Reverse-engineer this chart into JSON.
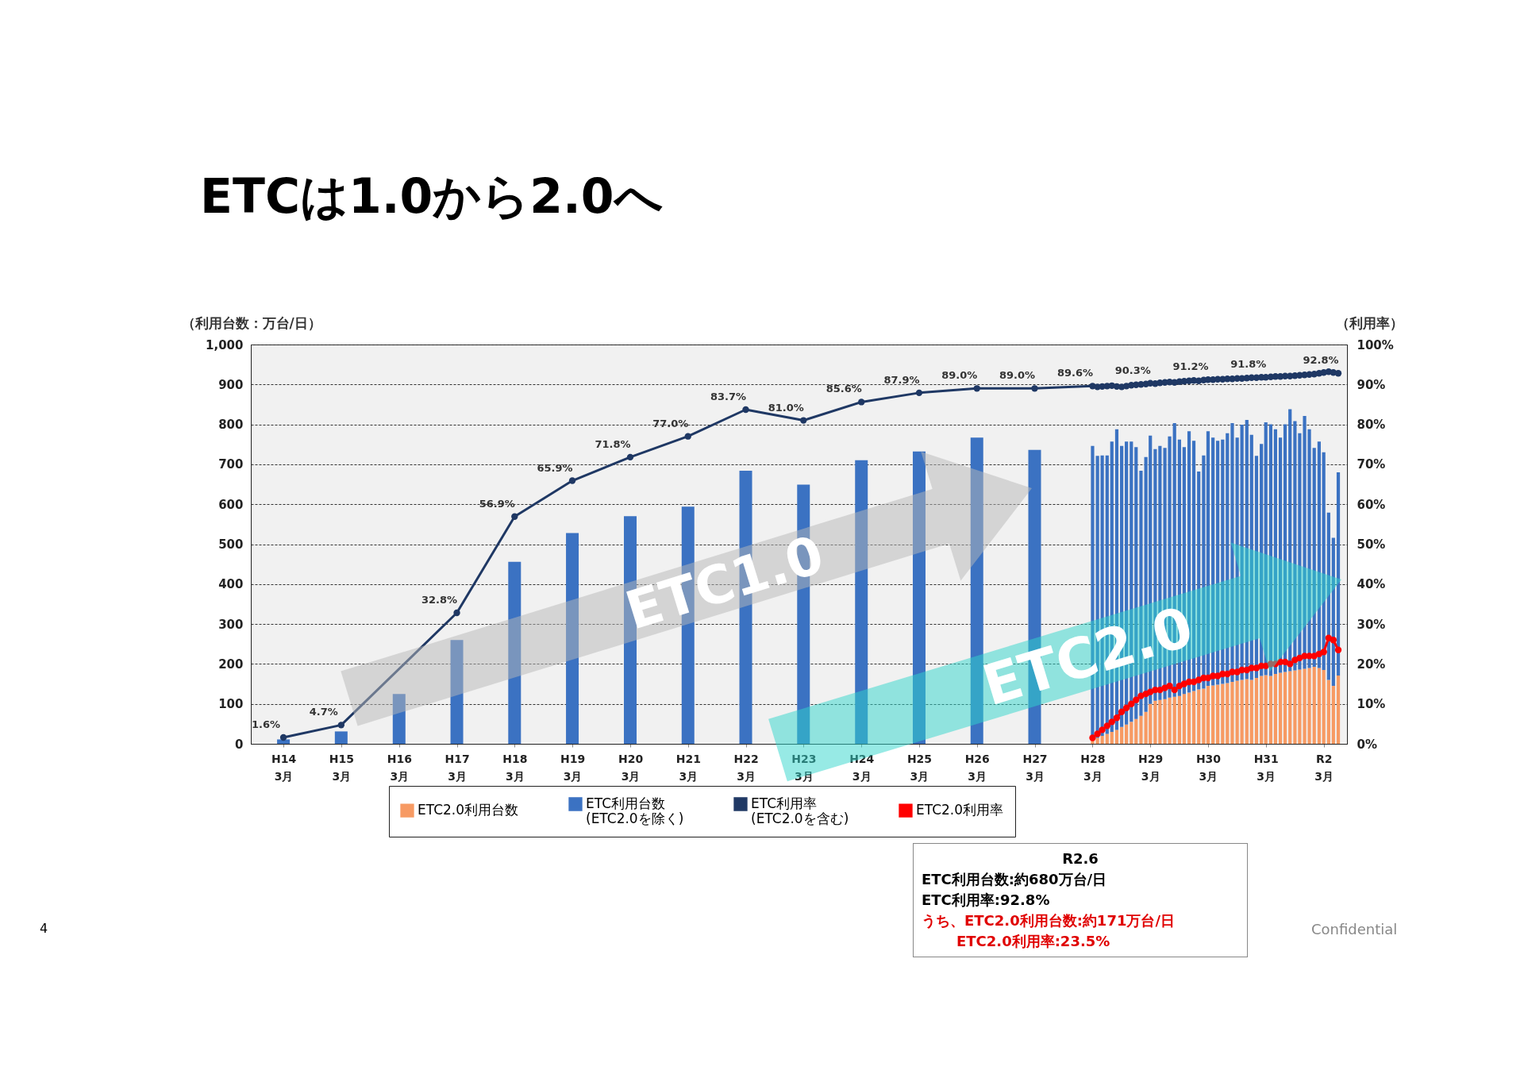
{
  "chart_data": {
    "type": "bar",
    "title": "ETCは1.0から2.0へ",
    "ylabel": "（利用台数：万台/日）",
    "y2label": "（利用率）",
    "stacked": true,
    "grid": "y",
    "legend": "bottom",
    "ylim": [
      0,
      1000
    ],
    "yticks": [
      0,
      100,
      200,
      300,
      400,
      500,
      600,
      700,
      800,
      900,
      {
        "value": 1000,
        "label": "1,000"
      }
    ],
    "y2lim": [
      0,
      100
    ],
    "y2ticks": [
      {
        "value": 0,
        "label": "0%"
      },
      {
        "value": 10,
        "label": "10%"
      },
      {
        "value": 20,
        "label": "20%"
      },
      {
        "value": 30,
        "label": "30%"
      },
      {
        "value": 40,
        "label": "40%"
      },
      {
        "value": 50,
        "label": "50%"
      },
      {
        "value": 60,
        "label": "60%"
      },
      {
        "value": 70,
        "label": "70%"
      },
      {
        "value": 80,
        "label": "80%"
      },
      {
        "value": 90,
        "label": "90%"
      },
      {
        "value": 100,
        "label": "100%"
      }
    ],
    "xlim": [
      "2001-09",
      "2020-07"
    ],
    "xticks": [
      {
        "value": "2002-03",
        "label": "H14\n3月"
      },
      {
        "value": "2003-03",
        "label": "H15\n3月"
      },
      {
        "value": "2004-03",
        "label": "H16\n3月"
      },
      {
        "value": "2005-03",
        "label": "H17\n3月"
      },
      {
        "value": "2006-03",
        "label": "H18\n3月"
      },
      {
        "value": "2007-03",
        "label": "H19\n3月"
      },
      {
        "value": "2008-03",
        "label": "H20\n3月"
      },
      {
        "value": "2009-03",
        "label": "H21\n3月"
      },
      {
        "value": "2010-03",
        "label": "H22\n3月"
      },
      {
        "value": "2011-03",
        "label": "H23\n3月"
      },
      {
        "value": "2012-03",
        "label": "H24\n3月"
      },
      {
        "value": "2013-03",
        "label": "H25\n3月"
      },
      {
        "value": "2014-03",
        "label": "H26\n3月"
      },
      {
        "value": "2015-03",
        "label": "H27\n3月"
      },
      {
        "value": "2016-03",
        "label": "H28\n3月"
      },
      {
        "value": "2017-03",
        "label": "H29\n3月"
      },
      {
        "value": "2018-03",
        "label": "H30\n3月"
      },
      {
        "value": "2019-03",
        "label": "H31\n3月"
      },
      {
        "value": "2020-03",
        "label": "R2\n3月"
      }
    ],
    "series": [
      {
        "name": "ETC2.0利用台数",
        "type": "bar",
        "color": "#f79a63",
        "x": [
          "2002-03",
          "2003-03",
          "2004-03",
          "2005-03",
          "2006-03",
          "2007-03",
          "2008-03",
          "2009-03",
          "2010-03",
          "2011-03",
          "2012-03",
          "2013-03",
          "2014-03",
          "2015-03",
          "2016-03",
          "2016-04",
          "2016-05",
          "2016-06",
          "2016-07",
          "2016-08",
          "2016-09",
          "2016-10",
          "2016-11",
          "2016-12",
          "2017-01",
          "2017-02",
          "2017-03",
          "2017-04",
          "2017-05",
          "2017-06",
          "2017-07",
          "2017-08",
          "2017-09",
          "2017-10",
          "2017-11",
          "2017-12",
          "2018-01",
          "2018-02",
          "2018-03",
          "2018-04",
          "2018-05",
          "2018-06",
          "2018-07",
          "2018-08",
          "2018-09",
          "2018-10",
          "2018-11",
          "2018-12",
          "2019-01",
          "2019-02",
          "2019-03",
          "2019-04",
          "2019-05",
          "2019-06",
          "2019-07",
          "2019-08",
          "2019-09",
          "2019-10",
          "2019-11",
          "2019-12",
          "2020-01",
          "2020-02",
          "2020-03",
          "2020-04",
          "2020-05",
          "2020-06"
        ],
        "values": [
          0,
          0,
          0,
          0,
          0,
          0,
          0,
          0,
          0,
          0,
          0,
          0,
          0,
          0,
          8,
          15,
          20,
          25,
          30,
          35,
          42,
          48,
          55,
          62,
          70,
          80,
          100,
          108,
          110,
          112,
          116,
          118,
          120,
          125,
          128,
          132,
          136,
          138,
          145,
          146,
          148,
          150,
          152,
          155,
          158,
          160,
          162,
          160,
          165,
          170,
          172,
          170,
          175,
          178,
          180,
          182,
          184,
          186,
          188,
          190,
          193,
          190,
          185,
          160,
          145,
          171
        ]
      },
      {
        "name": "ETC利用台数\n(ETC2.0を除く)",
        "type": "bar",
        "color": "#3b72c2",
        "x": [
          "2002-03",
          "2003-03",
          "2004-03",
          "2005-03",
          "2006-03",
          "2007-03",
          "2008-03",
          "2009-03",
          "2010-03",
          "2011-03",
          "2012-03",
          "2013-03",
          "2014-03",
          "2015-03",
          "2016-03",
          "2016-04",
          "2016-05",
          "2016-06",
          "2016-07",
          "2016-08",
          "2016-09",
          "2016-10",
          "2016-11",
          "2016-12",
          "2017-01",
          "2017-02",
          "2017-03",
          "2017-04",
          "2017-05",
          "2017-06",
          "2017-07",
          "2017-08",
          "2017-09",
          "2017-10",
          "2017-11",
          "2017-12",
          "2018-01",
          "2018-02",
          "2018-03",
          "2018-04",
          "2018-05",
          "2018-06",
          "2018-07",
          "2018-08",
          "2018-09",
          "2018-10",
          "2018-11",
          "2018-12",
          "2019-01",
          "2019-02",
          "2019-03",
          "2019-04",
          "2019-05",
          "2019-06",
          "2019-07",
          "2019-08",
          "2019-09",
          "2019-10",
          "2019-11",
          "2019-12",
          "2020-01",
          "2020-02",
          "2020-03",
          "2020-04",
          "2020-05",
          "2020-06"
        ],
        "values": [
          11,
          31,
          125,
          260,
          456,
          528,
          570,
          594,
          684,
          649,
          710,
          732,
          767,
          736,
          738,
          706,
          702,
          697,
          727,
          753,
          704,
          709,
          702,
          681,
          614,
          638,
          672,
          630,
          636,
          629,
          654,
          685,
          642,
          618,
          655,
          627,
          546,
          584,
          638,
          621,
          611,
          612,
          626,
          648,
          609,
          639,
          649,
          614,
          556,
          581,
          633,
          630,
          613,
          589,
          620,
          656,
          624,
          592,
          633,
          598,
          548,
          567,
          545,
          419,
          371,
          509
        ]
      },
      {
        "name": "ETC利用率\n(ETC2.0を含む)",
        "type": "line",
        "axis": "y2",
        "marker": "circle",
        "color": "#1f3864",
        "x": [
          "2002-03",
          "2003-03",
          "2004-03",
          "2005-03",
          "2006-03",
          "2007-03",
          "2008-03",
          "2009-03",
          "2010-03",
          "2011-03",
          "2012-03",
          "2013-03",
          "2014-03",
          "2015-03",
          "2016-03",
          "2016-04",
          "2016-05",
          "2016-06",
          "2016-07",
          "2016-08",
          "2016-09",
          "2016-10",
          "2016-11",
          "2016-12",
          "2017-01",
          "2017-02",
          "2017-03",
          "2017-04",
          "2017-05",
          "2017-06",
          "2017-07",
          "2017-08",
          "2017-09",
          "2017-10",
          "2017-11",
          "2017-12",
          "2018-01",
          "2018-02",
          "2018-03",
          "2018-04",
          "2018-05",
          "2018-06",
          "2018-07",
          "2018-08",
          "2018-09",
          "2018-10",
          "2018-11",
          "2018-12",
          "2019-01",
          "2019-02",
          "2019-03",
          "2019-04",
          "2019-05",
          "2019-06",
          "2019-07",
          "2019-08",
          "2019-09",
          "2019-10",
          "2019-11",
          "2019-12",
          "2020-01",
          "2020-02",
          "2020-03",
          "2020-04",
          "2020-05",
          "2020-06"
        ],
        "values": [
          1.6,
          4.7,
          null,
          32.8,
          56.9,
          65.9,
          71.8,
          77.0,
          83.7,
          81.0,
          85.6,
          87.9,
          89.0,
          89.0,
          89.6,
          89.4,
          89.5,
          89.6,
          89.7,
          89.5,
          89.4,
          89.6,
          89.8,
          89.9,
          90.0,
          90.1,
          90.3,
          90.2,
          90.4,
          90.5,
          90.6,
          90.5,
          90.7,
          90.8,
          90.9,
          91.0,
          90.9,
          91.1,
          91.2,
          91.2,
          91.3,
          91.3,
          91.4,
          91.4,
          91.5,
          91.5,
          91.6,
          91.7,
          91.7,
          91.8,
          91.8,
          91.9,
          92.0,
          92.0,
          92.1,
          92.1,
          92.2,
          92.3,
          92.4,
          92.5,
          92.6,
          92.8,
          93.0,
          93.2,
          93.0,
          92.8
        ],
        "value_labels": [
          "1.6%",
          "4.7%",
          null,
          "32.8%",
          "56.9%",
          "65.9%",
          "71.8%",
          "77.0%",
          "83.7%",
          "81.0%",
          "85.6%",
          "87.9%",
          "89.0%",
          "89.0%",
          "89.6%",
          null,
          null,
          null,
          null,
          null,
          null,
          null,
          null,
          null,
          null,
          null,
          "90.3%",
          null,
          null,
          null,
          null,
          null,
          null,
          null,
          null,
          null,
          null,
          null,
          "91.2%",
          null,
          null,
          null,
          null,
          null,
          null,
          null,
          null,
          null,
          null,
          null,
          "91.8%",
          null,
          null,
          null,
          null,
          null,
          null,
          null,
          null,
          null,
          null,
          null,
          null,
          null,
          null,
          "92.8%"
        ]
      },
      {
        "name": "ETC2.0利用率",
        "type": "line",
        "axis": "y2",
        "marker": "circle",
        "color": "#ff0000",
        "x": [
          "2016-03",
          "2016-04",
          "2016-05",
          "2016-06",
          "2016-07",
          "2016-08",
          "2016-09",
          "2016-10",
          "2016-11",
          "2016-12",
          "2017-01",
          "2017-02",
          "2017-03",
          "2017-04",
          "2017-05",
          "2017-06",
          "2017-07",
          "2017-08",
          "2017-09",
          "2017-10",
          "2017-11",
          "2017-12",
          "2018-01",
          "2018-02",
          "2018-03",
          "2018-04",
          "2018-05",
          "2018-06",
          "2018-07",
          "2018-08",
          "2018-09",
          "2018-10",
          "2018-11",
          "2018-12",
          "2019-01",
          "2019-02",
          "2019-03",
          "2019-04",
          "2019-05",
          "2019-06",
          "2019-07",
          "2019-08",
          "2019-09",
          "2019-10",
          "2019-11",
          "2019-12",
          "2020-01",
          "2020-02",
          "2020-03",
          "2020-04",
          "2020-05",
          "2020-06"
        ],
        "values": [
          1.5,
          2.5,
          3.5,
          4.5,
          5.5,
          6.5,
          8,
          9,
          10,
          11,
          12,
          12.5,
          13,
          13.5,
          13.5,
          14,
          14.5,
          13.5,
          14.5,
          15,
          15.5,
          15.5,
          16,
          16.5,
          16.5,
          17,
          17,
          17.5,
          17.5,
          18,
          18,
          18.5,
          18.5,
          19,
          19,
          19.5,
          19.5,
          20,
          20,
          20.5,
          20.5,
          20,
          21,
          21.5,
          22,
          22,
          22,
          22.5,
          23,
          26.5,
          26,
          23.5
        ]
      }
    ],
    "annotations": [
      "ETC1.0",
      "ETC2.0",
      "R2.6",
      "ETC利用台数:約680万台/日",
      "ETC利用率:92.8%",
      "うち、ETC2.0利用台数:約171万台/日",
      "ETC2.0利用率:23.5%",
      "4",
      "Confidential"
    ]
  }
}
